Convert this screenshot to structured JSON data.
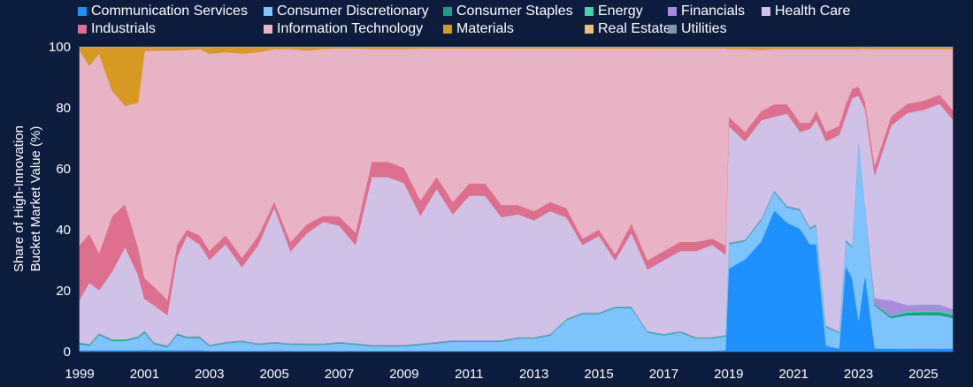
{
  "chart_data": {
    "type": "area",
    "stacked": true,
    "normalized": true,
    "title": "",
    "xlabel": "",
    "ylabel": "Share of High-Innovation Bucket Market Value (%)",
    "ylabel_lines": [
      "Share of High-Innovation",
      "Bucket Market Value (%)"
    ],
    "ylim": [
      0,
      100
    ],
    "xlim": [
      1999.0,
      2025.9
    ],
    "y_ticks": [
      0,
      20,
      40,
      60,
      80,
      100
    ],
    "x_ticks": [
      1999,
      2001,
      2003,
      2005,
      2007,
      2009,
      2011,
      2013,
      2015,
      2017,
      2019,
      2021,
      2023,
      2025
    ],
    "legend_position": "top",
    "x": [
      1999.0,
      1999.3,
      1999.6,
      2000.0,
      2000.4,
      2000.8,
      2001.0,
      2001.3,
      2001.7,
      2002.0,
      2002.3,
      2002.7,
      2003.0,
      2003.5,
      2004.0,
      2004.5,
      2005.0,
      2005.5,
      2006.0,
      2006.5,
      2007.0,
      2007.5,
      2008.0,
      2008.5,
      2009.0,
      2009.5,
      2010.0,
      2010.5,
      2011.0,
      2011.5,
      2012.0,
      2012.5,
      2013.0,
      2013.5,
      2014.0,
      2014.5,
      2015.0,
      2015.5,
      2016.0,
      2016.5,
      2017.0,
      2017.5,
      2018.0,
      2018.5,
      2018.9,
      2019.0,
      2019.5,
      2020.0,
      2020.4,
      2020.8,
      2021.2,
      2021.5,
      2021.7,
      2022.0,
      2022.4,
      2022.6,
      2022.8,
      2023.0,
      2023.2,
      2023.5,
      2024.0,
      2024.5,
      2025.0,
      2025.5,
      2025.9
    ],
    "series": [
      {
        "name": "Communication Services",
        "color": "#1e90ff",
        "values": [
          0.5,
          0.5,
          0.5,
          0.5,
          0.5,
          0.5,
          0.5,
          0.5,
          0.5,
          0.5,
          0.5,
          0.5,
          0.3,
          0.3,
          0.3,
          0.3,
          0.3,
          0.3,
          0.3,
          0.3,
          0.3,
          0.3,
          0.3,
          0.3,
          0.3,
          0.3,
          0.3,
          0.3,
          0.3,
          0.3,
          0.3,
          0.3,
          0.3,
          0.3,
          0.3,
          0.3,
          0.3,
          0.3,
          0.3,
          0.3,
          0.3,
          0.3,
          0.3,
          0.3,
          0.5,
          27,
          30,
          36,
          46,
          42,
          40,
          35,
          35,
          2,
          1,
          28,
          24,
          10,
          32,
          1,
          1,
          1,
          1,
          1,
          1
        ]
      },
      {
        "name": "Consumer Discretionary",
        "color": "#7cc4fb",
        "values": [
          2,
          1.5,
          5,
          3,
          3,
          4,
          5,
          2,
          1,
          5,
          4,
          4,
          1.5,
          2.5,
          3,
          2,
          2.5,
          2,
          2,
          2,
          2.5,
          2,
          1.5,
          1.5,
          1.5,
          2,
          2.5,
          3,
          3,
          3,
          3,
          4,
          4,
          5,
          10,
          12,
          12,
          14,
          14,
          6,
          5,
          6,
          4,
          4,
          4.5,
          8,
          6,
          7,
          6,
          5,
          6,
          5,
          6,
          6,
          5,
          8,
          10,
          58,
          28,
          14,
          10,
          11,
          11,
          11,
          10
        ]
      },
      {
        "name": "Consumer Staples",
        "color": "#1a9e80",
        "values": [
          0.3,
          0.3,
          0.3,
          0.3,
          0.3,
          0.3,
          0.3,
          0.3,
          0.3,
          0.3,
          0.3,
          0.3,
          0.2,
          0.2,
          0.2,
          0.2,
          0.2,
          0.2,
          0.2,
          0.2,
          0.2,
          0.2,
          0.2,
          0.2,
          0.2,
          0.2,
          0.2,
          0.2,
          0.2,
          0.2,
          0.2,
          0.2,
          0.2,
          0.2,
          0.2,
          0.2,
          0.2,
          0.2,
          0.2,
          0.2,
          0.2,
          0.2,
          0.2,
          0.2,
          0.2,
          0.2,
          0.2,
          0.2,
          0.2,
          0.2,
          0.2,
          0.2,
          0.2,
          0.2,
          0.2,
          0.2,
          0.2,
          0.2,
          0.2,
          0.3,
          0.5,
          0.8,
          1,
          1,
          1
        ]
      },
      {
        "name": "Energy",
        "color": "#44d4a8",
        "values": [
          0.1,
          0.1,
          0.1,
          0.1,
          0.1,
          0.1,
          0.1,
          0.1,
          0.1,
          0.1,
          0.1,
          0.1,
          0.1,
          0.1,
          0.1,
          0.1,
          0.1,
          0.1,
          0.1,
          0.1,
          0.1,
          0.1,
          0.1,
          0.1,
          0.1,
          0.1,
          0.1,
          0.1,
          0.1,
          0.1,
          0.1,
          0.1,
          0.1,
          0.1,
          0.1,
          0.1,
          0.1,
          0.1,
          0.1,
          0.1,
          0.1,
          0.1,
          0.1,
          0.1,
          0.1,
          0.1,
          0.1,
          0.1,
          0.1,
          0.1,
          0.1,
          0.1,
          0.1,
          0.1,
          0.1,
          0.1,
          0.1,
          0.1,
          0.1,
          0.1,
          0.3,
          0.5,
          0.5,
          0.5,
          0.5
        ]
      },
      {
        "name": "Financials",
        "color": "#a98bdb",
        "values": [
          0.2,
          0.2,
          0.2,
          0.2,
          0.2,
          0.2,
          0.2,
          0.2,
          0.2,
          0.2,
          0.2,
          0.2,
          0.2,
          0.2,
          0.2,
          0.2,
          0.2,
          0.2,
          0.2,
          0.2,
          0.2,
          0.2,
          0.2,
          0.2,
          0.2,
          0.2,
          0.2,
          0.2,
          0.2,
          0.2,
          0.2,
          0.2,
          0.2,
          0.2,
          0.2,
          0.2,
          0.2,
          0.2,
          0.2,
          0.2,
          0.2,
          0.2,
          0.2,
          0.2,
          0.2,
          0.2,
          0.2,
          0.3,
          0.3,
          0.3,
          0.3,
          0.3,
          0.3,
          0.3,
          0.3,
          0.3,
          0.3,
          0.3,
          0.3,
          2,
          5,
          2,
          2,
          2,
          1.5
        ]
      },
      {
        "name": "Health Care",
        "color": "#cfc2e6",
        "values": [
          14,
          20,
          14,
          22,
          30,
          20,
          9,
          12,
          10,
          25,
          33,
          30,
          28,
          32,
          24,
          32,
          44,
          30,
          36,
          40,
          38,
          32,
          55,
          55,
          53,
          42,
          50,
          41,
          47,
          47,
          40,
          40,
          38,
          40,
          33,
          22,
          25,
          15,
          24,
          20,
          24,
          26,
          28,
          30,
          26,
          38,
          32,
          32,
          24,
          30,
          25,
          32,
          34,
          60,
          64,
          40,
          48,
          14,
          40,
          40,
          57,
          63,
          64,
          66,
          62
        ]
      },
      {
        "name": "Industrials",
        "color": "#dd6e8e",
        "values": [
          18,
          16,
          12,
          18,
          14,
          9,
          6,
          6,
          5,
          4,
          2,
          3,
          3,
          3,
          3,
          3,
          2,
          3,
          3,
          2,
          3,
          4,
          5,
          5,
          5,
          5,
          4,
          4,
          4,
          4,
          4,
          3,
          3,
          3,
          3,
          2,
          2,
          2,
          3,
          3,
          3,
          3,
          3,
          2,
          3,
          3,
          3,
          3,
          4,
          3,
          3,
          2,
          3,
          3,
          3,
          4,
          3,
          3,
          3,
          3,
          3,
          3,
          3,
          3,
          3
        ]
      },
      {
        "name": "Information Technology",
        "color": "#e7b3c5",
        "values": [
          64,
          55,
          65,
          41,
          32,
          47,
          65,
          77,
          82,
          64,
          59,
          61,
          65,
          60,
          67,
          60,
          50,
          63,
          57,
          55,
          55,
          60,
          37,
          37,
          39,
          50,
          42,
          50,
          44,
          44,
          51,
          51,
          53,
          50,
          52,
          62,
          59,
          67,
          57,
          69,
          66,
          63,
          63,
          62,
          64,
          22,
          27,
          20,
          18,
          18,
          24,
          24,
          20,
          27,
          25,
          18,
          13,
          12,
          22,
          38,
          22,
          18,
          17,
          15,
          20
        ]
      },
      {
        "name": "Materials",
        "color": "#d89922",
        "values": [
          1,
          6,
          2,
          14,
          19,
          18,
          1,
          1,
          1,
          1,
          0.8,
          0.5,
          2,
          1.5,
          2,
          1.5,
          0.5,
          0.5,
          1,
          0.5,
          0.3,
          0.3,
          0.5,
          0.5,
          0.5,
          0.3,
          0.3,
          0.3,
          0.3,
          0.3,
          0.3,
          0.3,
          0.3,
          0.3,
          0.3,
          0.3,
          0.3,
          0.3,
          0.3,
          0.3,
          0.3,
          0.3,
          0.3,
          0.3,
          0.3,
          0.5,
          0.5,
          0.8,
          0.5,
          0.5,
          0.5,
          0.5,
          0.5,
          0.5,
          0.5,
          0.5,
          0.5,
          0.5,
          0.5,
          0.5,
          0.5,
          0.5,
          0.5,
          0.5,
          0.5
        ]
      },
      {
        "name": "Real Estate",
        "color": "#efc078",
        "values": [
          0.1,
          0.1,
          0.1,
          0.1,
          0.1,
          0.1,
          0.1,
          0.1,
          0.1,
          0.1,
          0.1,
          0.1,
          0.1,
          0.1,
          0.1,
          0.1,
          0.1,
          0.1,
          0.1,
          0.1,
          0.1,
          0.1,
          0.1,
          0.1,
          0.1,
          0.1,
          0.1,
          0.1,
          0.1,
          0.1,
          0.1,
          0.1,
          0.1,
          0.1,
          0.1,
          0.1,
          0.1,
          0.1,
          0.1,
          0.1,
          0.1,
          0.1,
          0.1,
          0.1,
          0.1,
          0.1,
          0.1,
          0.1,
          0.1,
          0.1,
          0.1,
          0.1,
          0.1,
          0.1,
          0.1,
          0.1,
          0.1,
          0.1,
          0.1,
          0.1,
          0.1,
          0.1,
          0.1,
          0.1,
          0.1
        ]
      },
      {
        "name": "Utilities",
        "color": "#7e97a9",
        "values": [
          0.1,
          0.1,
          0.1,
          0.1,
          0.1,
          0.1,
          0.1,
          0.1,
          0.1,
          0.1,
          0.1,
          0.1,
          0.1,
          0.1,
          0.1,
          0.1,
          0.1,
          0.1,
          0.1,
          0.1,
          0.1,
          0.1,
          0.1,
          0.1,
          0.1,
          0.1,
          0.1,
          0.1,
          0.1,
          0.1,
          0.1,
          0.1,
          0.1,
          0.1,
          0.1,
          0.1,
          0.1,
          0.1,
          0.1,
          0.1,
          0.1,
          0.1,
          0.1,
          0.1,
          0.1,
          0.1,
          0.1,
          0.1,
          0.1,
          0.1,
          0.1,
          0.1,
          0.1,
          0.1,
          0.1,
          0.1,
          0.1,
          0.1,
          0.1,
          0.1,
          0.1,
          0.1,
          0.1,
          0.1,
          0.1
        ]
      }
    ]
  },
  "theme": {
    "background": "#0b1c3d",
    "text": "#ffffff"
  }
}
